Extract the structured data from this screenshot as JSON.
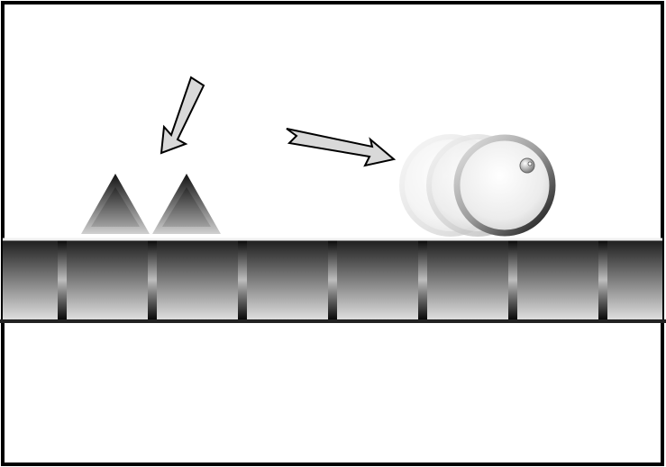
{
  "scene": {
    "frame_color": "#000000",
    "background_color": "#ffffff",
    "ground": {
      "block_count": 8,
      "top_color": "#1a1a1a",
      "bottom_color": "#e2e2e2",
      "gap_color": "#444444"
    },
    "spikes": {
      "count": 2,
      "dark_color": "#111111",
      "light_color": "#cfcfcf"
    },
    "player": {
      "shape": "circle",
      "motion_trail_copies": 2,
      "face_color": "#f4f4f4",
      "rim_color": "#1a1a1a",
      "eye_color": "#8a8a8a"
    },
    "arrows": [
      {
        "name": "arrow-to-spikes",
        "fill": "#d9d9d9",
        "stroke": "#000000",
        "points_to": "spikes"
      },
      {
        "name": "arrow-to-player",
        "fill": "#d9d9d9",
        "stroke": "#000000",
        "points_to": "player"
      }
    ]
  }
}
